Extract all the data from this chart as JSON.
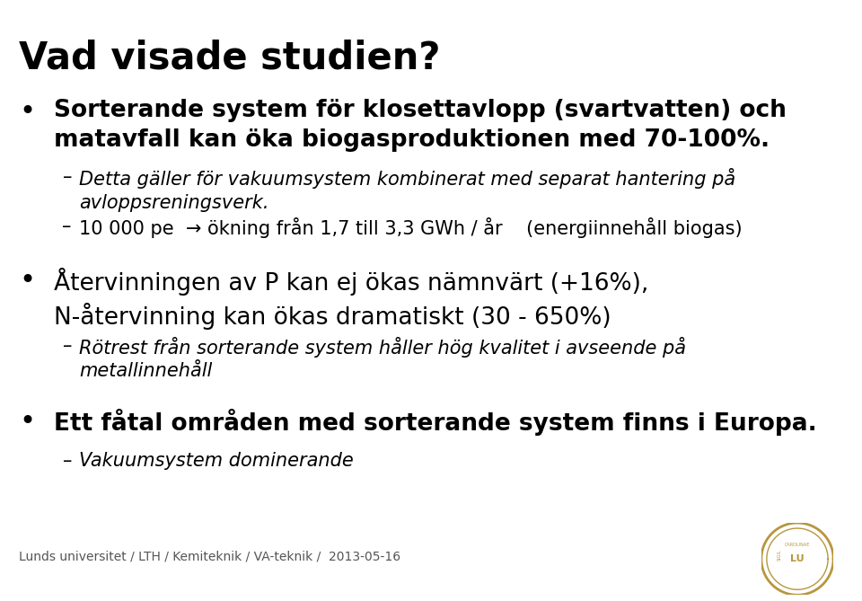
{
  "title": "Vad visade studien?",
  "title_fontsize": 30,
  "background_color": "#ffffff",
  "text_color": "#000000",
  "footer_text": "Lunds universitet / LTH / Kemiteknik / VA-teknik /  2013-05-16",
  "footer_color": "#555555",
  "bullet1": "Sorterande system för klosettavlopp (svartvatten) och\nmatavfall kan öka biogasproduktionen med 70-100%.",
  "bullet1_fontsize": 19,
  "sub1a": "Detta gäller för vakuumsystem kombinerat med separat hantering på\navloppsreningsverk.",
  "sub1b": "10 000 pe  → ökning från 1,7 till 3,3 GWh / år    (energiinnehåll biogas)",
  "sub_fontsize": 15,
  "bullet2": "Återvinningen av P kan ej ökas nämnvärt (+16%),\nN-återvinning kan ökas dramatiskt (30 - 650%)",
  "bullet2_fontsize": 19,
  "sub2a": "Rötrest från sorterande system håller hög kvalitet i avseende på\nmetallinnehåll",
  "bullet3": "Ett fåtal områden med sorterande system finns i Europa.",
  "bullet3_fontsize": 19,
  "sub3a": "Vakuumsystem dominerande",
  "bullet_color": "#000000",
  "line_color": "#aaaaaa",
  "seal_color": "#b8963e"
}
